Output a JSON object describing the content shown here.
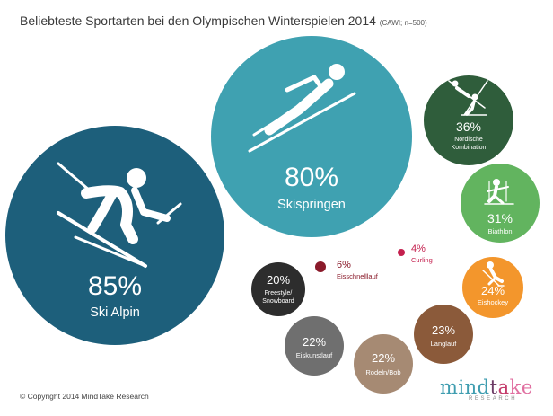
{
  "title": "Beliebteste Sportarten bei den Olympischen Winterspielen 2014",
  "subtitle": "(CAWI; n=500)",
  "copyright": "© Copyright 2014 MindTake Research",
  "logo": {
    "part1": "mind",
    "part2": "t",
    "part3": "a",
    "part4": "ke",
    "tagline": "RESEARCH"
  },
  "chart_data": {
    "type": "bubble",
    "title": "Beliebteste Sportarten bei den Olympischen Winterspielen 2014",
    "subtitle": "(CAWI; n=500)",
    "unit": "%",
    "items": [
      {
        "label": "Ski Alpin",
        "value": 85,
        "value_label": "85%",
        "color": "#1d5f7b",
        "icon": "alpine-skier-icon"
      },
      {
        "label": "Skispringen",
        "value": 80,
        "value_label": "80%",
        "color": "#3fa1b1",
        "icon": "ski-jumper-icon"
      },
      {
        "label": "Nordische Kombination",
        "value": 36,
        "value_label": "36%",
        "color": "#2f5d3b",
        "icon": "nordic-combined-icon"
      },
      {
        "label": "Biathlon",
        "value": 31,
        "value_label": "31%",
        "color": "#62b45f",
        "icon": "biathlete-icon"
      },
      {
        "label": "Eishockey",
        "value": 24,
        "value_label": "24%",
        "color": "#f3962c",
        "icon": "hockey-player-icon"
      },
      {
        "label": "Langlauf",
        "value": 23,
        "value_label": "23%",
        "color": "#8b5a3a",
        "icon": ""
      },
      {
        "label": "Rodeln/Bob",
        "value": 22,
        "value_label": "22%",
        "color": "#a68a73",
        "icon": ""
      },
      {
        "label": "Eiskunstlauf",
        "value": 22,
        "value_label": "22%",
        "color": "#6f6f6f",
        "icon": ""
      },
      {
        "label": "Freestyle/ Snowboard",
        "value": 20,
        "value_label": "20%",
        "color": "#2d2d2d",
        "icon": ""
      },
      {
        "label": "Eisschnelllauf",
        "value": 6,
        "value_label": "6%",
        "color": "#8a1a2a",
        "icon": ""
      },
      {
        "label": "Curling",
        "value": 4,
        "value_label": "4%",
        "color": "#c4204e",
        "icon": ""
      }
    ]
  }
}
